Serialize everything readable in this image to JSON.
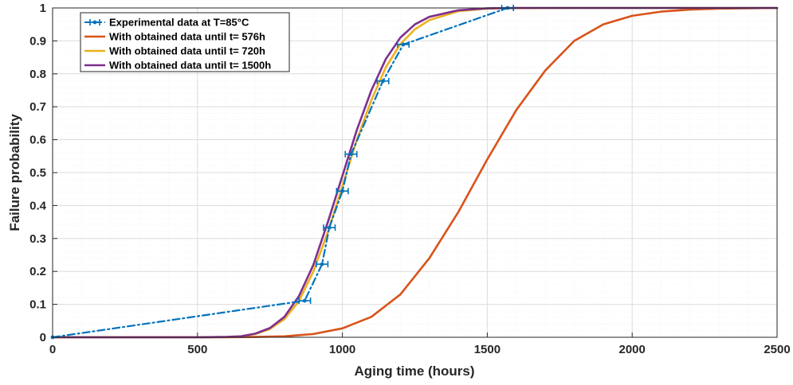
{
  "chart_data": {
    "type": "line",
    "title": "",
    "xlabel": "Aging time (hours)",
    "ylabel": "Failure probability",
    "xlim": [
      0,
      2500
    ],
    "ylim": [
      0,
      1
    ],
    "xticks": [
      0,
      500,
      1000,
      1500,
      2000,
      2500
    ],
    "yticks": [
      0,
      0.1,
      0.2,
      0.3,
      0.4,
      0.5,
      0.6,
      0.7,
      0.8,
      0.9,
      1
    ],
    "xtick_labels": [
      "0",
      "500",
      "1000",
      "1500",
      "2000",
      "2500"
    ],
    "ytick_labels": [
      "0",
      "0.1",
      "0.2",
      "0.3",
      "0.4",
      "0.5",
      "0.6",
      "0.7",
      "0.8",
      "0.9",
      "1"
    ],
    "grid": true,
    "minor_grid": true,
    "legend_position": "top-left",
    "series": [
      {
        "name": "Experimental data at T=85°C",
        "color": "#0072BD",
        "style": "dashdot-with-errorbars",
        "x": [
          0,
          870,
          930,
          955,
          1000,
          1030,
          1140,
          1210,
          1570
        ],
        "y": [
          0,
          0.111,
          0.222,
          0.333,
          0.444,
          0.556,
          0.778,
          0.889,
          1.0
        ],
        "xerr": [
          0,
          20,
          20,
          20,
          20,
          20,
          20,
          20,
          20
        ]
      },
      {
        "name": "With obtained data until t= 576h",
        "color": "#D95319",
        "style": "solid",
        "x": [
          0,
          200,
          400,
          600,
          700,
          800,
          900,
          1000,
          1100,
          1200,
          1300,
          1400,
          1500,
          1600,
          1700,
          1800,
          1900,
          2000,
          2100,
          2200,
          2300,
          2400,
          2500
        ],
        "y": [
          0,
          0,
          0,
          0,
          0.001,
          0.003,
          0.01,
          0.027,
          0.062,
          0.13,
          0.24,
          0.38,
          0.54,
          0.69,
          0.81,
          0.9,
          0.95,
          0.976,
          0.989,
          0.995,
          0.998,
          0.999,
          1.0
        ]
      },
      {
        "name": "With obtained data until t= 720h",
        "color": "#EDB120",
        "style": "solid",
        "x": [
          0,
          500,
          600,
          650,
          700,
          750,
          800,
          850,
          900,
          950,
          1000,
          1050,
          1100,
          1150,
          1200,
          1250,
          1300,
          1400,
          1500,
          1600,
          1800,
          2000,
          2500
        ],
        "y": [
          0,
          0,
          0.001,
          0.003,
          0.01,
          0.025,
          0.055,
          0.11,
          0.2,
          0.32,
          0.46,
          0.6,
          0.72,
          0.82,
          0.89,
          0.935,
          0.963,
          0.99,
          0.998,
          0.9995,
          1.0,
          1.0,
          1.0
        ]
      },
      {
        "name": "With obtained data until t= 1500h",
        "color": "#7E2F8E",
        "style": "solid",
        "x": [
          0,
          500,
          600,
          650,
          700,
          750,
          800,
          850,
          900,
          950,
          1000,
          1050,
          1100,
          1150,
          1200,
          1250,
          1300,
          1400,
          1500,
          1600,
          1800,
          2000,
          2500
        ],
        "y": [
          0,
          0,
          0.001,
          0.003,
          0.011,
          0.028,
          0.062,
          0.125,
          0.22,
          0.35,
          0.49,
          0.63,
          0.75,
          0.845,
          0.91,
          0.95,
          0.973,
          0.993,
          0.999,
          1.0,
          1.0,
          1.0,
          1.0
        ]
      }
    ]
  }
}
